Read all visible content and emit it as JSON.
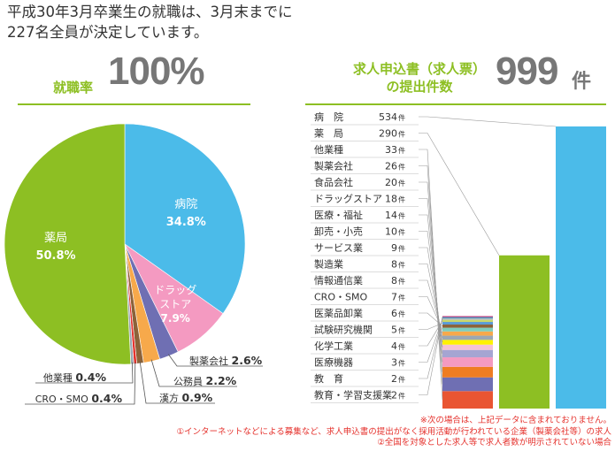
{
  "headline": [
    "平成30年3月卒業生の就職は、3月末までに",
    "227名全員が決定しています。"
  ],
  "employment": {
    "label": "就職率",
    "value": "100%"
  },
  "applications": {
    "label_lines": [
      "求人申込書（求人票）",
      "の提出件数"
    ],
    "value": "999",
    "unit": "件"
  },
  "colors": {
    "accent_green": "#8dbf23",
    "value_gray": "#777777",
    "note_red": "#e5322d"
  },
  "chart_data": [
    {
      "type": "pie",
      "slices": [
        {
          "label": "病院",
          "value": 34.8,
          "value_text": "34.8%",
          "color": "#4bbbe9"
        },
        {
          "label": "ドラッグストア",
          "label_lines": [
            "ドラッグ",
            "ストア"
          ],
          "value": 7.9,
          "value_text": "7.9%",
          "color": "#f49ac1"
        },
        {
          "label": "製薬会社",
          "value": 2.6,
          "value_text": "2.6%",
          "color": "#6f6fb3"
        },
        {
          "label": "公務員",
          "value": 2.2,
          "value_text": "2.2%",
          "color": "#f7a94b"
        },
        {
          "label": "漢方",
          "value": 0.9,
          "value_text": "0.9%",
          "color": "#8c6239"
        },
        {
          "label": "CRO・SMO",
          "value": 0.4,
          "value_text": "0.4%",
          "color": "#e5322d"
        },
        {
          "label": "他業種",
          "value": 0.4,
          "value_text": "0.4%",
          "color": "#9ba8b3"
        },
        {
          "label": "薬局",
          "value": 50.8,
          "value_text": "50.8%",
          "color": "#8dbf23"
        }
      ]
    },
    {
      "type": "bar",
      "rows": [
        {
          "label": "病　院",
          "value": 534,
          "count_text": "534",
          "unit": "件",
          "color": "#4bbbe9"
        },
        {
          "label": "薬　局",
          "value": 290,
          "count_text": "290",
          "unit": "件",
          "color": "#8dbf23"
        },
        {
          "label": "他業種",
          "value": 33,
          "count_text": "33",
          "unit": "件",
          "color": "#e95532"
        },
        {
          "label": "製薬会社",
          "value": 26,
          "count_text": "26",
          "unit": "件",
          "color": "#6f6fb3"
        },
        {
          "label": "食品会社",
          "value": 20,
          "count_text": "20",
          "unit": "件",
          "color": "#ef7d22"
        },
        {
          "label": "ドラッグストア",
          "value": 18,
          "count_text": "18",
          "unit": "件",
          "color": "#f49ac1"
        },
        {
          "label": "医療・福祉",
          "value": 14,
          "count_text": "14",
          "unit": "件",
          "color": "#a5a5d2"
        },
        {
          "label": "卸売・小売",
          "value": 10,
          "count_text": "10",
          "unit": "件",
          "color": "#f6c2d4"
        },
        {
          "label": "サービス業",
          "value": 9,
          "count_text": "9",
          "unit": "件",
          "color": "#fff200"
        },
        {
          "label": "製造業",
          "value": 8,
          "count_text": "8",
          "unit": "件",
          "color": "#9ba8b3"
        },
        {
          "label": "情報通信業",
          "value": 8,
          "count_text": "8",
          "unit": "件",
          "color": "#f7a94b"
        },
        {
          "label": "CRO・SMO",
          "value": 7,
          "count_text": "7",
          "unit": "件",
          "color": "#7fcdbb"
        },
        {
          "label": "医薬品卸業",
          "value": 6,
          "count_text": "6",
          "unit": "件",
          "color": "#8c6239"
        },
        {
          "label": "試験研究機関",
          "value": 5,
          "count_text": "5",
          "unit": "件",
          "color": "#5b9bd5"
        },
        {
          "label": "化学工業",
          "value": 4,
          "count_text": "4",
          "unit": "件",
          "color": "#c9d86a"
        },
        {
          "label": "医療機器",
          "value": 3,
          "count_text": "3",
          "unit": "件",
          "color": "#b0b8bf"
        },
        {
          "label": "教　育",
          "value": 2,
          "count_text": "2",
          "unit": "件",
          "color": "#2b8fb8"
        },
        {
          "label": "教育・学習支援業",
          "value": 2,
          "count_text": "2",
          "unit": "件",
          "color": "#c0397a"
        }
      ]
    }
  ],
  "footnotes": [
    "※次の場合は、上記データに含まれておりません。",
    "①インターネットなどによる募集など、求人申込書の提出がなく採用活動が行われている企業（製薬会社等）の求人",
    "②全国を対象とした求人等で求人者数が明示されていない場合"
  ]
}
